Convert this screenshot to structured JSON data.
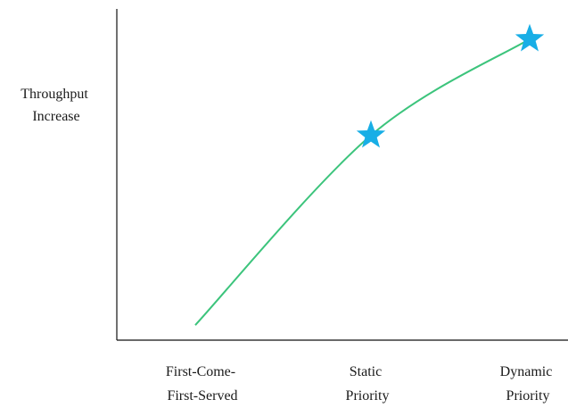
{
  "chart_data": {
    "type": "line",
    "title": "",
    "ylabel": [
      "Throughput",
      "Increase"
    ],
    "xlabel": "",
    "categories": [
      [
        "First-Come-",
        "First-Served"
      ],
      [
        "Static",
        "Priority"
      ],
      [
        "Dynamic",
        "Priority"
      ]
    ],
    "series": [
      {
        "color": "#3cc47c",
        "marker_color": "#18aee6",
        "values": [
          0.05,
          0.68,
          1.0
        ],
        "starred_points": [
          1,
          2
        ]
      }
    ],
    "ylim": [
      0,
      1.1
    ],
    "grid": false,
    "y_ticks_shown": false
  }
}
